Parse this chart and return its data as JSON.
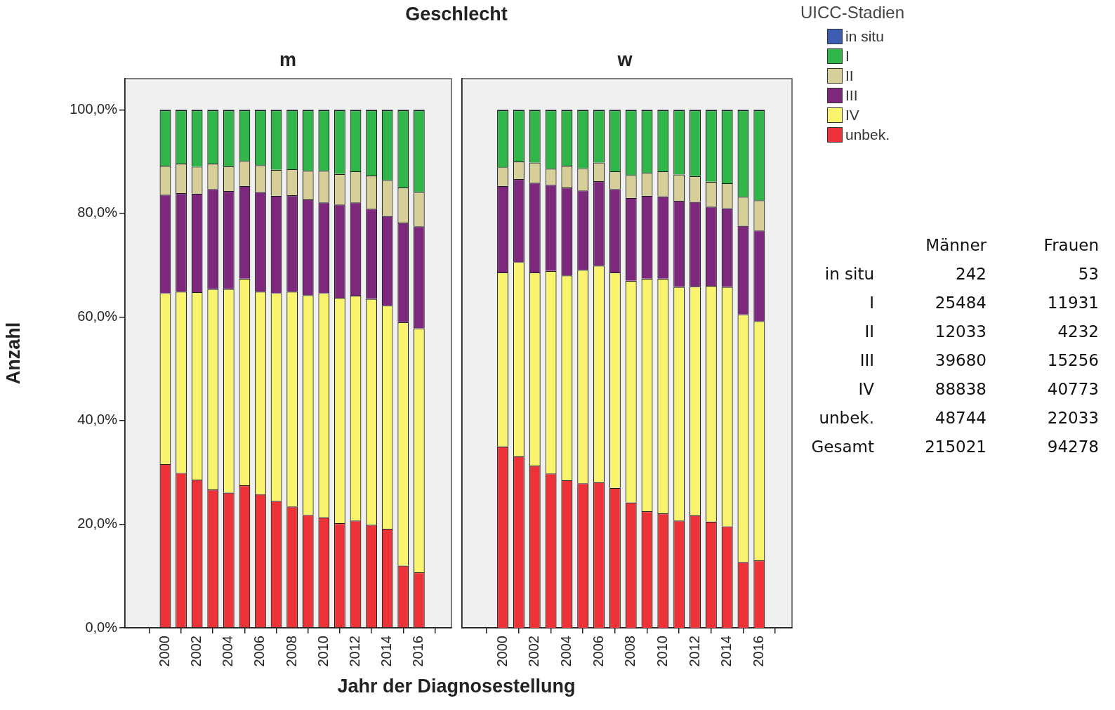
{
  "chart_data": [
    {
      "type": "bar",
      "title": "Geschlecht",
      "subtitle": "m",
      "xlabel": "Jahr der Diagnosestellung",
      "ylabel": "Anzahl",
      "stacked": true,
      "categories": [
        "2000",
        null,
        "2002",
        null,
        "2004",
        null,
        "2006",
        null,
        "2008",
        null,
        "2010",
        null,
        "2012",
        null,
        "2014",
        null,
        "2016"
      ],
      "ylim": [
        0,
        106
      ],
      "yticks": [
        {
          "value": 0,
          "label": "0,0%"
        },
        {
          "value": 20,
          "label": "20,0%"
        },
        {
          "value": 40,
          "label": "40,0%"
        },
        {
          "value": 60,
          "label": "60,0%"
        },
        {
          "value": 80,
          "label": "80,0%"
        },
        {
          "value": 100,
          "label": "100,0%"
        }
      ],
      "series": [
        {
          "color": "#ee3338",
          "values": [
            31.6,
            29.9,
            28.6,
            26.7,
            26.1,
            27.5,
            25.8,
            24.5,
            23.4,
            21.8,
            21.3,
            20.2,
            20.7,
            19.9,
            19.1,
            12.0,
            10.7
          ]
        },
        {
          "color": "#f9f36d",
          "values": [
            33.0,
            35.0,
            36.2,
            38.7,
            39.3,
            39.9,
            39.1,
            40.1,
            41.5,
            42.4,
            43.3,
            43.5,
            43.4,
            43.6,
            43.1,
            47.0,
            47.1
          ]
        },
        {
          "color": "#7d277d",
          "values": [
            19.0,
            19.0,
            19.0,
            19.3,
            18.9,
            17.9,
            19.2,
            18.8,
            18.6,
            18.5,
            17.5,
            18.0,
            18.0,
            17.4,
            17.3,
            19.2,
            19.7
          ]
        },
        {
          "color": "#d6cf97",
          "values": [
            5.6,
            5.7,
            5.2,
            4.9,
            4.8,
            4.8,
            5.2,
            5.0,
            5.0,
            5.5,
            6.1,
            5.9,
            6.0,
            6.4,
            6.9,
            6.8,
            6.6
          ]
        },
        {
          "color": "#2fb548",
          "values": [
            10.7,
            10.3,
            10.9,
            10.3,
            10.8,
            9.8,
            10.6,
            11.5,
            11.4,
            11.7,
            11.7,
            12.3,
            11.8,
            12.6,
            13.5,
            14.9,
            15.8
          ]
        },
        {
          "color": "#3d5eb0",
          "values": [
            0.1,
            0.1,
            0.1,
            0.1,
            0.1,
            0.1,
            0.1,
            0.1,
            0.1,
            0.1,
            0.1,
            0.1,
            0.1,
            0.1,
            0.1,
            0.1,
            0.1
          ]
        }
      ]
    },
    {
      "type": "bar",
      "subtitle": "w",
      "stacked": true,
      "tick_labels": "x",
      "legend": "top right",
      "legend_title": "UICC-Stadien",
      "categories": [
        "2000",
        null,
        "2002",
        null,
        "2004",
        null,
        "2006",
        null,
        "2008",
        null,
        "2010",
        null,
        "2012",
        null,
        "2014",
        null,
        "2016"
      ],
      "ylim": [
        0,
        106
      ],
      "series": [
        {
          "name": "unbek.",
          "color": "#ee3338",
          "values": [
            35.0,
            33.1,
            31.3,
            29.8,
            28.5,
            27.9,
            28.1,
            27.0,
            24.2,
            22.5,
            22.1,
            20.7,
            21.7,
            20.5,
            19.6,
            12.7,
            13.0
          ]
        },
        {
          "name": "IV",
          "color": "#f9f36d",
          "values": [
            33.6,
            37.5,
            37.3,
            39.1,
            39.5,
            41.2,
            41.8,
            41.6,
            42.8,
            44.9,
            45.3,
            45.1,
            44.2,
            45.5,
            46.2,
            47.8,
            46.2
          ]
        },
        {
          "name": "III",
          "color": "#7d277d",
          "values": [
            16.7,
            16.0,
            17.3,
            16.6,
            17.0,
            15.3,
            16.3,
            16.1,
            16.0,
            16.0,
            15.9,
            16.6,
            16.3,
            15.3,
            15.2,
            17.1,
            17.5
          ]
        },
        {
          "name": "II",
          "color": "#d6cf97",
          "values": [
            3.6,
            3.4,
            3.9,
            3.1,
            4.2,
            4.3,
            3.6,
            3.4,
            4.4,
            4.4,
            4.8,
            5.1,
            5.0,
            4.8,
            4.8,
            5.6,
            5.8
          ]
        },
        {
          "name": "I",
          "color": "#2fb548",
          "values": [
            11.0,
            9.9,
            10.1,
            11.3,
            10.7,
            11.2,
            10.1,
            11.8,
            12.5,
            12.1,
            11.8,
            12.4,
            12.7,
            13.8,
            14.1,
            16.7,
            17.4
          ]
        },
        {
          "name": "in situ",
          "color": "#3d5eb0",
          "values": [
            0.1,
            0.1,
            0.1,
            0.1,
            0.1,
            0.1,
            0.1,
            0.1,
            0.1,
            0.1,
            0.1,
            0.1,
            0.1,
            0.1,
            0.1,
            0.1,
            0.1
          ]
        }
      ]
    },
    {
      "type": "other",
      "data_labels": true,
      "categories": [
        "Männer",
        "Frauen"
      ],
      "series": [
        {
          "name": "in situ",
          "values": [
            242,
            53
          ]
        },
        {
          "name": "I",
          "values": [
            25484,
            11931
          ]
        },
        {
          "name": "II",
          "values": [
            12033,
            4232
          ]
        },
        {
          "name": "III",
          "values": [
            39680,
            15256
          ]
        },
        {
          "name": "IV",
          "values": [
            88838,
            40773
          ]
        },
        {
          "name": "unbek.",
          "values": [
            48744,
            22033
          ]
        },
        {
          "name": "Gesamt",
          "values": [
            215021,
            94278
          ]
        }
      ]
    }
  ]
}
